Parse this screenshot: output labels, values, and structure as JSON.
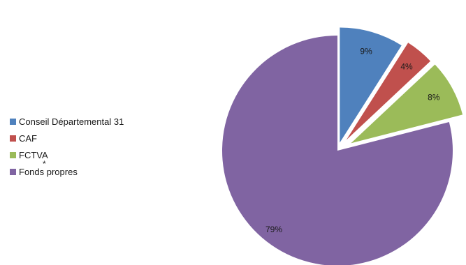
{
  "chart_data": {
    "type": "pie",
    "title": "",
    "exploded": true,
    "legend_position": "left",
    "slices": [
      {
        "label": "Conseil Départemental 31",
        "value": 9,
        "display": "9%",
        "color": "#4F81BD"
      },
      {
        "label": "CAF",
        "value": 4,
        "display": "4%",
        "color": "#C0504D"
      },
      {
        "label": "FCTVA",
        "value": 8,
        "display": "8%",
        "color": "#9BBB59"
      },
      {
        "label": "Fonds propres",
        "value": 79,
        "display": "79%",
        "color": "#8064A2"
      }
    ]
  },
  "annotation": "*"
}
